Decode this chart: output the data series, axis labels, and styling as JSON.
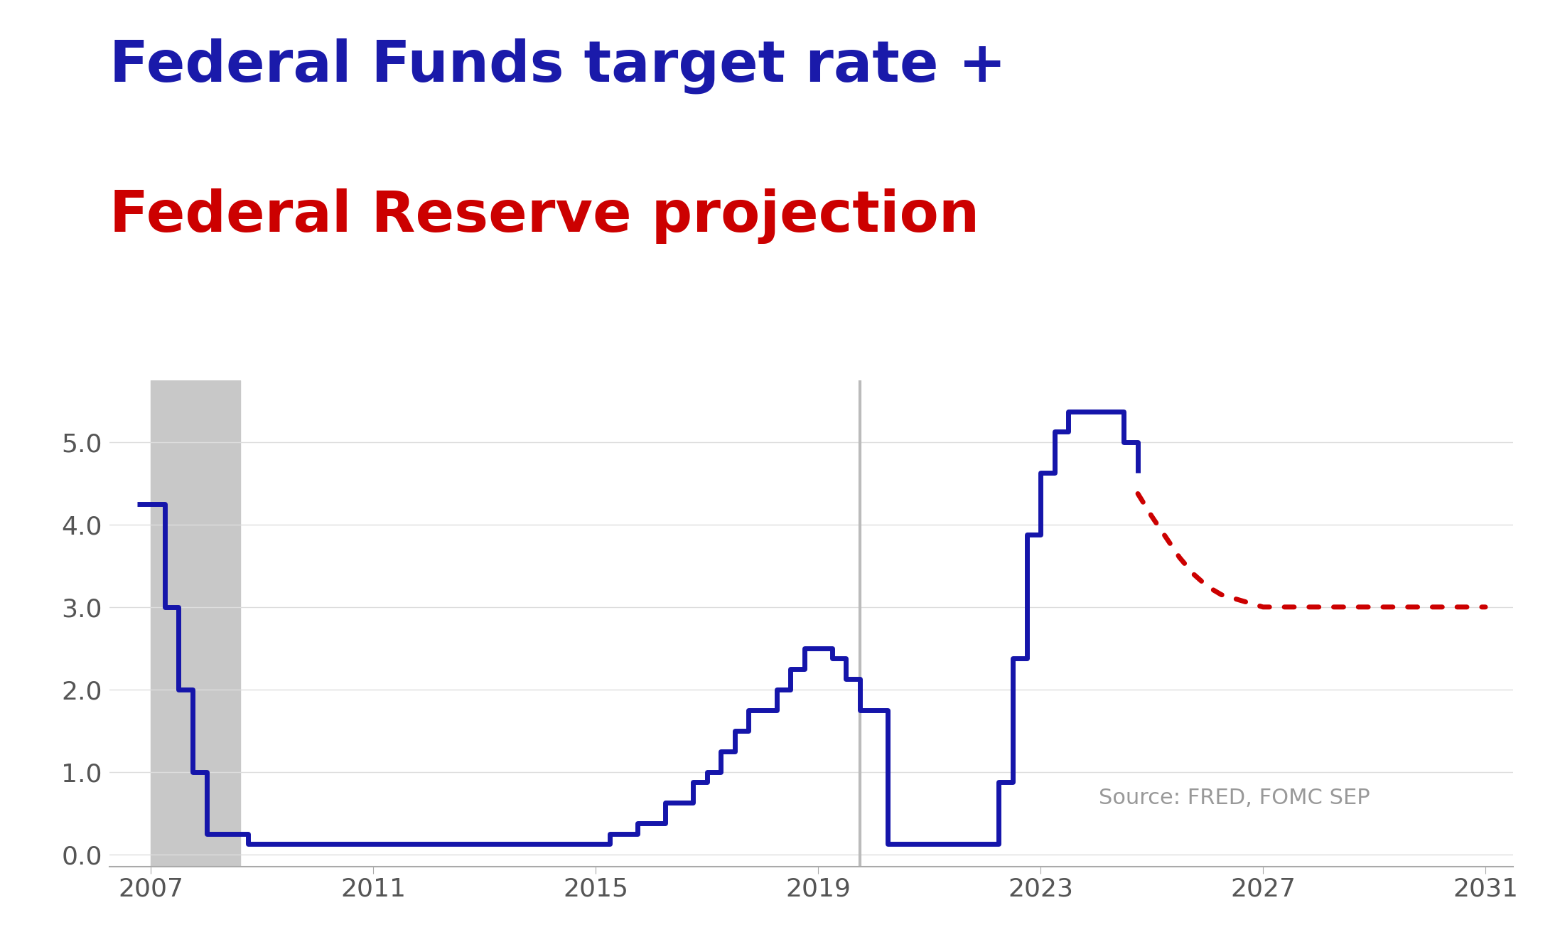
{
  "title_line1": "Federal Funds target rate +",
  "title_line2": "Federal Reserve projection",
  "title_color1": "#1a1aaa",
  "title_color2": "#cc0000",
  "source_text": "Source: FRED, FOMC SEP",
  "background_color": "#ffffff",
  "recession_bands": [
    [
      2007.0,
      2008.6
    ]
  ],
  "recession_color": "#c8c8c8",
  "vline_x": 2019.75,
  "vline_color": "#bbbbbb",
  "fed_funds_x": [
    2006.75,
    2007.0,
    2007.25,
    2007.5,
    2007.75,
    2008.0,
    2008.25,
    2008.5,
    2008.75,
    2009.0,
    2009.25,
    2009.5,
    2009.75,
    2010.0,
    2010.5,
    2011.0,
    2011.5,
    2012.0,
    2012.5,
    2013.0,
    2013.5,
    2014.0,
    2014.5,
    2015.0,
    2015.25,
    2015.75,
    2016.25,
    2016.75,
    2017.0,
    2017.25,
    2017.5,
    2017.75,
    2018.0,
    2018.25,
    2018.5,
    2018.75,
    2019.0,
    2019.25,
    2019.5,
    2019.75,
    2020.0,
    2020.25,
    2020.5,
    2020.75,
    2021.0,
    2021.25,
    2021.5,
    2021.75,
    2022.0,
    2022.25,
    2022.5,
    2022.75,
    2023.0,
    2023.25,
    2023.5,
    2023.75,
    2024.0,
    2024.25,
    2024.5,
    2024.75
  ],
  "fed_funds_y": [
    4.25,
    4.25,
    3.0,
    2.0,
    1.0,
    0.25,
    0.25,
    0.25,
    0.125,
    0.125,
    0.125,
    0.125,
    0.125,
    0.125,
    0.125,
    0.125,
    0.125,
    0.125,
    0.125,
    0.125,
    0.125,
    0.125,
    0.125,
    0.125,
    0.25,
    0.375,
    0.625,
    0.875,
    1.0,
    1.25,
    1.5,
    1.75,
    1.75,
    2.0,
    2.25,
    2.5,
    2.5,
    2.375,
    2.125,
    1.75,
    1.75,
    0.125,
    0.125,
    0.125,
    0.125,
    0.125,
    0.125,
    0.125,
    0.125,
    0.875,
    2.375,
    3.875,
    4.625,
    5.125,
    5.375,
    5.375,
    5.375,
    5.375,
    5.0,
    4.625
  ],
  "fed_funds_color": "#1515aa",
  "fed_funds_linewidth": 5.0,
  "projection_x": [
    2024.75,
    2025.0,
    2025.25,
    2025.5,
    2025.75,
    2026.0,
    2026.25,
    2026.5,
    2026.75,
    2027.0,
    2027.25,
    2027.5,
    2027.75,
    2028.0,
    2028.5,
    2029.0,
    2029.5,
    2030.0,
    2030.5,
    2031.0
  ],
  "projection_y": [
    4.375,
    4.1,
    3.85,
    3.6,
    3.4,
    3.25,
    3.15,
    3.1,
    3.05,
    3.0,
    3.0,
    3.0,
    3.0,
    3.0,
    3.0,
    3.0,
    3.0,
    3.0,
    3.0,
    3.0
  ],
  "projection_color": "#cc0000",
  "projection_linewidth": 5.0,
  "xlim": [
    2006.25,
    2031.5
  ],
  "ylim": [
    -0.15,
    5.75
  ],
  "yticks": [
    0.0,
    1.0,
    2.0,
    3.0,
    4.0,
    5.0
  ],
  "xticks": [
    2007,
    2011,
    2015,
    2019,
    2023,
    2027,
    2031
  ],
  "tick_fontsize": 26,
  "source_fontsize": 22,
  "source_color": "#999999",
  "title_fontsize": 58
}
